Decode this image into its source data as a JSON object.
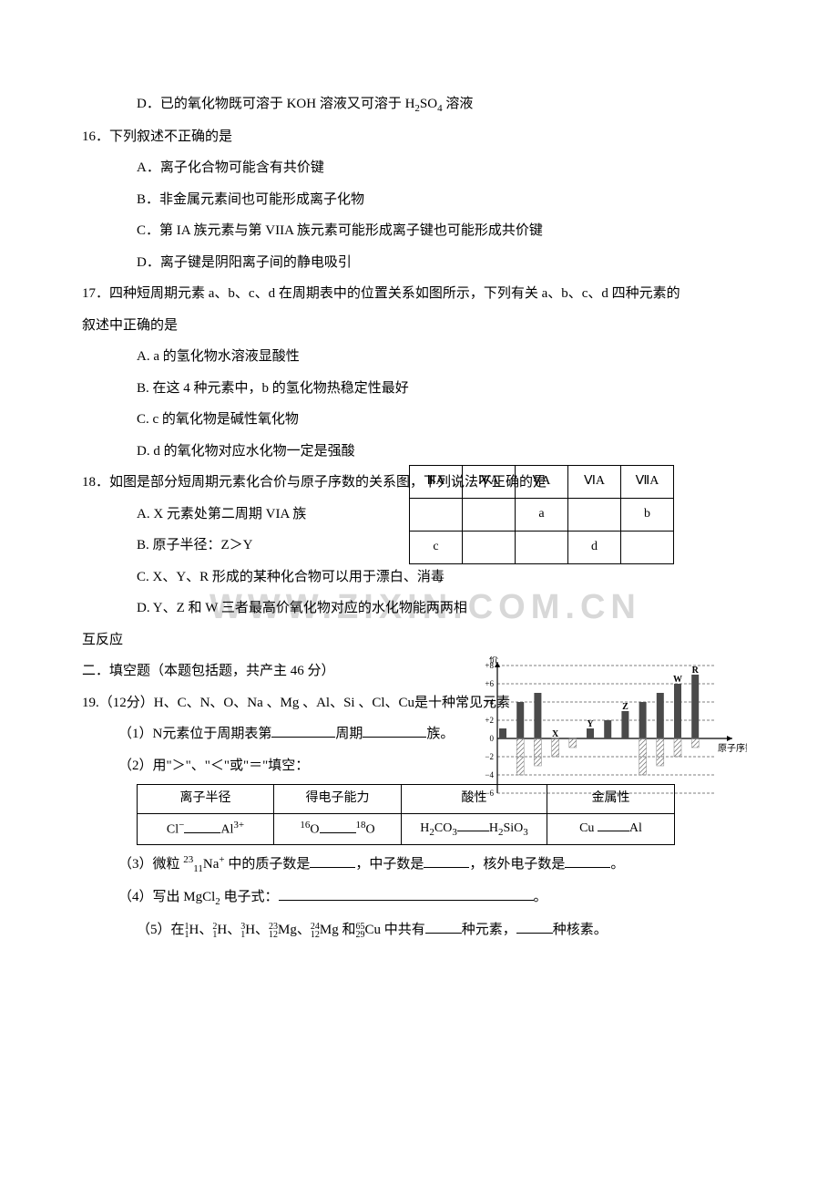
{
  "q15d": "D．已的氧化物既可溶于 KOH 溶液又可溶于 H",
  "q15d_sub": "2",
  "q15d_mid": "SO",
  "q15d_sub2": "4",
  "q15d_end": " 溶液",
  "q16": {
    "stem": "16．下列叙述不正确的是",
    "a": "A．离子化合物可能含有共价键",
    "b": "B．非金属元素间也可能形成离子化物",
    "c": "C．第 IA 族元素与第 VIIA 族元素可能形成离子键也可能形成共价键",
    "d": "D．离子键是阴阳离子间的静电吸引"
  },
  "q17": {
    "stem1": "17．四种短周期元素 a、b、c、d 在周期表中的位置关系如图所示，下列有关 a、b、c、d 四种元素的",
    "stem2": "叙述中正确的是",
    "a": "A. a 的氢化物水溶液显酸性",
    "b": "B. 在这 4 种元素中，b 的氢化物热稳定性最好",
    "c": "C. c 的氧化物是碱性氧化物",
    "d": "D. d 的氧化物对应水化物一定是强酸",
    "table": {
      "headers": [
        "ⅢA",
        "ⅣA",
        "ⅤA",
        "ⅥA",
        "ⅦA"
      ],
      "row1": [
        "",
        "",
        "a",
        "",
        "b"
      ],
      "row2": [
        "c",
        "",
        "",
        "d",
        ""
      ]
    }
  },
  "q18": {
    "stem": "18．如图是部分短周期元素化合价与原子序数的关系图，下列说法不正确的是",
    "a": "A. X 元素处第二周期 VIA 族",
    "b": "B. 原子半径：Z＞Y",
    "c": "C. X、Y、R 形成的某种化合物可以用于漂白、消毒",
    "d": "D. Y、Z 和 W 三者最高价氧化物对应的水化物能两两相",
    "d2": "互反应",
    "chart": {
      "ylabel": "化合价",
      "xlabel": "原子序数",
      "yticks": [
        "+8",
        "+6",
        "+4",
        "+2",
        "0",
        "−2",
        "−4",
        "−6"
      ],
      "bars": [
        {
          "x": 1,
          "pos": 1.1,
          "neg": 0,
          "label": ""
        },
        {
          "x": 2,
          "pos": 4,
          "neg": -4,
          "label": ""
        },
        {
          "x": 3,
          "pos": 5,
          "neg": -3,
          "label": ""
        },
        {
          "x": 4,
          "pos": 0,
          "neg": -2,
          "label": "X"
        },
        {
          "x": 5,
          "pos": 0,
          "neg": -1,
          "label": ""
        },
        {
          "x": 6,
          "pos": 1.1,
          "neg": 0,
          "label": "Y"
        },
        {
          "x": 7,
          "pos": 2,
          "neg": 0,
          "label": ""
        },
        {
          "x": 8,
          "pos": 3,
          "neg": 0,
          "label": "Z"
        },
        {
          "x": 9,
          "pos": 4,
          "neg": -4,
          "label": ""
        },
        {
          "x": 10,
          "pos": 5,
          "neg": -3,
          "label": ""
        },
        {
          "x": 11,
          "pos": 6,
          "neg": -2,
          "label": "W"
        },
        {
          "x": 12,
          "pos": 7,
          "neg": -1,
          "label": "R"
        }
      ],
      "bar_color": "#4a4a4a",
      "hatch_color": "#808080",
      "axis_color": "#000000",
      "text_color": "#000000"
    }
  },
  "sec2": "二．填空题（本题包括题，共产主 46 分）",
  "q19": {
    "stem": "19.（12分）H、C、N、O、Na 、Mg 、Al、Si 、Cl、Cu是十种常见元素",
    "p1a": "（1）N元素位于周期表第",
    "p1b": "周期",
    "p1c": "族。",
    "p2": "（2）用\"＞\"、\"＜\"或\"＝\"填空：",
    "table": {
      "h1": "离子半径",
      "h2": "得电子能力",
      "h3": "酸性",
      "h4": "金属性",
      "r1": "Cl⁻",
      "r1v": "Al³⁺",
      "r2": "¹⁶O",
      "r2v": "¹⁸O",
      "r3": "H₂CO₃",
      "r3v": "H₂SiO₃",
      "r4": "Cu",
      "r4v": "Al"
    },
    "p3a": "（3）微粒 ",
    "p3b": "Na",
    "p3c": " 中的质子数是",
    "p3d": "，中子数是",
    "p3e": "，核外电子数是",
    "p3f": "。",
    "p4a": "（4）写出 MgCl",
    "p4b": " 电子式：",
    "p4c": "。",
    "p5a": "（5）在",
    "p5_items": [
      "H、",
      "H、",
      "H、",
      "Mg、",
      "Mg 和",
      "Cu 中共有"
    ],
    "p5_sup": [
      "1",
      "2",
      "3",
      "23",
      "24",
      "65"
    ],
    "p5_sub": [
      "1",
      "1",
      "1",
      "12",
      "12",
      "29"
    ],
    "p5b": "种元素，",
    "p5c": "种核素。"
  }
}
